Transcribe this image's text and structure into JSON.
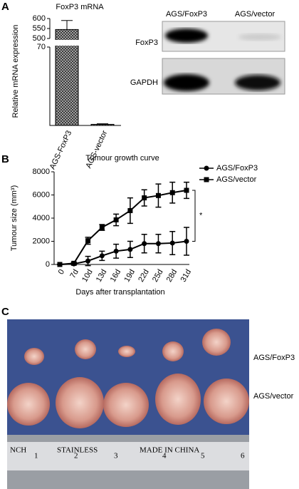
{
  "panel_labels": [
    "A",
    "B",
    "C"
  ],
  "chart_data": [
    {
      "type": "bar",
      "title": "FoxP3 mRNA",
      "y_label": "Relative mRNA expression",
      "categories": [
        "AGS-FoxP3",
        "AGS-vector"
      ],
      "values": [
        545,
        1
      ],
      "errors": [
        45,
        0.5
      ],
      "color": "#555555",
      "hatch": true,
      "ylim_upper": [
        500,
        600
      ],
      "yticks_upper": [
        500,
        550,
        600
      ],
      "ylim_lower": [
        0,
        70
      ],
      "yticks_lower": [
        70
      ]
    },
    {
      "type": "line",
      "title": "Tumour growth curve",
      "y_label": "Tumour size (mm³)",
      "x_label": "Days after transplantation",
      "categories": [
        "0",
        "7d",
        "10d",
        "13d",
        "16d",
        "19d",
        "22d",
        "25d",
        "28d",
        "31d"
      ],
      "series": [
        {
          "name": "AGS/FoxP3",
          "color": "#000000",
          "marker": "circle",
          "values": [
            0,
            50,
            300,
            750,
            1150,
            1300,
            1800,
            1800,
            1850,
            2000
          ],
          "errors": [
            0,
            100,
            400,
            400,
            600,
            700,
            800,
            800,
            1000,
            1200
          ]
        },
        {
          "name": "AGS/vector",
          "color": "#000000",
          "marker": "square",
          "values": [
            0,
            100,
            2050,
            3200,
            3850,
            4650,
            5750,
            5950,
            6200,
            6400
          ],
          "errors": [
            0,
            100,
            300,
            250,
            500,
            1100,
            700,
            1000,
            900,
            700
          ]
        }
      ],
      "ylim": [
        0,
        8000
      ],
      "yticks": [
        0,
        2000,
        4000,
        6000,
        8000
      ],
      "annotation": "*",
      "legend": "upper right"
    }
  ],
  "blot": {
    "columns": [
      "AGS/FoxP3",
      "AGS/vector"
    ],
    "rows": [
      "FoxP3",
      "GAPDH"
    ]
  },
  "photo": {
    "rows": [
      "AGS/FoxP3",
      "AGS/vector"
    ],
    "ruler": [
      "NCH",
      "1",
      "STAINLESS",
      "2",
      "3",
      "MADE IN CHINA",
      "4",
      "5",
      "6"
    ]
  }
}
